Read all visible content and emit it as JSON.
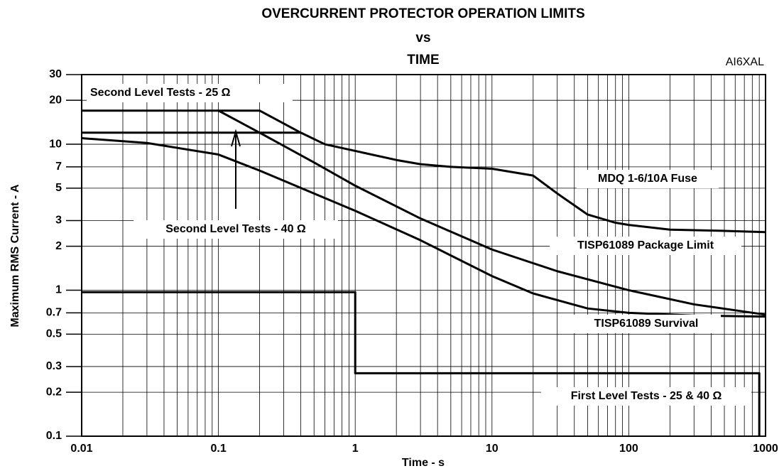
{
  "chart_data": {
    "type": "line",
    "title": [
      "OVERCURRENT PROTECTOR OPERATION LIMITS",
      "vs",
      "TIME"
    ],
    "figure_code": "AI6XAL",
    "xlabel": "Time - s",
    "ylabel": "Maximum RMS Current - A",
    "xscale": "log",
    "yscale": "log",
    "grid": true,
    "xlim": [
      0.01,
      1000
    ],
    "ylim": [
      0.1,
      30
    ],
    "xticks": [
      0.01,
      0.1,
      1,
      10,
      100,
      1000
    ],
    "yticks": [
      30,
      20,
      10,
      7,
      5,
      3,
      2,
      1,
      0.7,
      0.5,
      0.3,
      0.2,
      0.1
    ],
    "series": [
      {
        "name": "Second Level Tests - 25 Ω",
        "color": "#000000",
        "x": [
          0.01,
          0.2,
          0.4
        ],
        "values": [
          17,
          17,
          12
        ]
      },
      {
        "name": "Second Level Tests - 40 Ω",
        "color": "#000000",
        "x": [
          0.01,
          0.4
        ],
        "values": [
          12,
          12
        ]
      },
      {
        "name": "MDQ 1-6/10A Fuse",
        "color": "#000000",
        "x": [
          0.4,
          0.6,
          1,
          2,
          3,
          5,
          10,
          20,
          30,
          50,
          80,
          100,
          200,
          500,
          1000
        ],
        "values": [
          12,
          10,
          9,
          7.8,
          7.3,
          7,
          6.8,
          6.1,
          4.6,
          3.3,
          2.9,
          2.8,
          2.6,
          2.55,
          2.5
        ]
      },
      {
        "name": "TISP61089 Package Limit",
        "color": "#000000",
        "x": [
          0.1,
          0.2,
          0.5,
          1,
          3,
          10,
          30,
          100,
          300,
          1000
        ],
        "values": [
          17,
          12,
          7.5,
          5.2,
          3.1,
          1.9,
          1.35,
          1.0,
          0.8,
          0.68
        ]
      },
      {
        "name": "TISP61089 Survival",
        "color": "#000000",
        "x": [
          0.01,
          0.03,
          0.1,
          0.2,
          0.5,
          1,
          3,
          10,
          20,
          50,
          100,
          300,
          1000
        ],
        "values": [
          11,
          10.2,
          8.5,
          6.6,
          4.6,
          3.5,
          2.2,
          1.25,
          0.95,
          0.75,
          0.7,
          0.67,
          0.66
        ]
      },
      {
        "name": "First Level Tests - 25 & 40 Ω",
        "color": "#000000",
        "x": [
          0.01,
          1,
          1,
          900,
          900
        ],
        "values": [
          0.97,
          0.97,
          0.27,
          0.27,
          0.1
        ]
      }
    ]
  }
}
